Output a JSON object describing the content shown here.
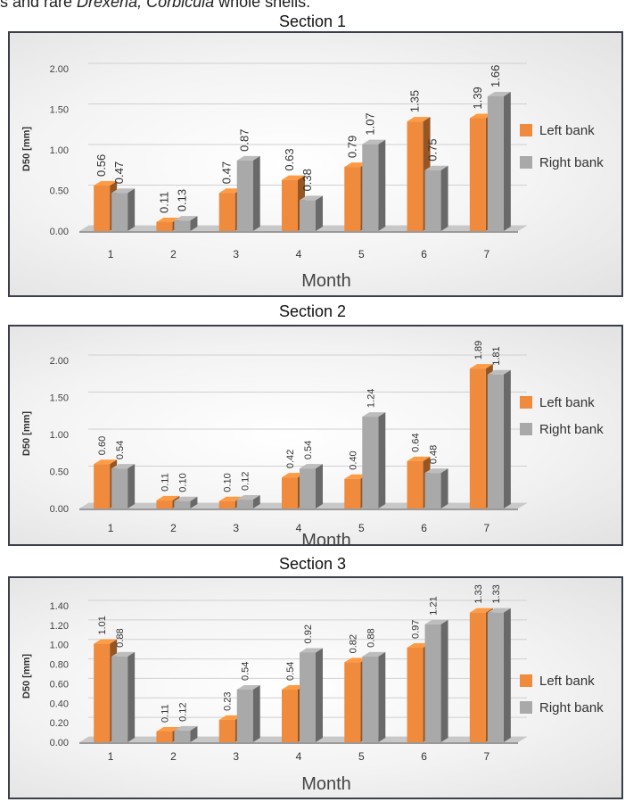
{
  "header": {
    "prefix": "s and rare ",
    "italic1": "Drexena, Corbicula",
    "suffix": " whole shells."
  },
  "legend_labels": [
    "Left bank",
    "Right bank"
  ],
  "colors": {
    "left": "#f08a3c",
    "right": "#a9a9a9"
  },
  "chart_data": [
    {
      "type": "bar",
      "title": "Section 1",
      "xlabel": "Month",
      "ylabel": "D50 [mm]",
      "categories": [
        "1",
        "2",
        "3",
        "4",
        "5",
        "6",
        "7"
      ],
      "ylim": [
        0,
        2.0
      ],
      "yticks": [
        "0.00",
        "0.50",
        "1.00",
        "1.50",
        "2.00"
      ],
      "ytick_values": [
        0,
        0.5,
        1.0,
        1.5,
        2.0
      ],
      "series": [
        {
          "name": "Left bank",
          "values": [
            0.56,
            0.11,
            0.47,
            0.63,
            0.79,
            1.35,
            1.39
          ],
          "labels": [
            "0.56",
            "0.11",
            "0.47",
            "0.63",
            "0.79",
            "1.35",
            "1.39"
          ]
        },
        {
          "name": "Right bank",
          "values": [
            0.47,
            0.13,
            0.87,
            0.38,
            1.07,
            0.75,
            1.66
          ],
          "labels": [
            "0.47",
            "0.13",
            "0.87",
            "0.38",
            "1.07",
            "0.75",
            "1.66"
          ]
        }
      ],
      "legend": "right",
      "grid": true
    },
    {
      "type": "bar",
      "title": "Section 2",
      "xlabel": "Month",
      "ylabel": "D50 [mm]",
      "categories": [
        "1",
        "2",
        "3",
        "4",
        "5",
        "6",
        "7"
      ],
      "ylim": [
        0,
        2.0
      ],
      "yticks": [
        "0.00",
        "0.50",
        "1.00",
        "1.50",
        "2.00"
      ],
      "ytick_values": [
        0,
        0.5,
        1.0,
        1.5,
        2.0
      ],
      "series": [
        {
          "name": "Left bank",
          "values": [
            0.6,
            0.11,
            0.1,
            0.42,
            0.4,
            0.64,
            1.89
          ],
          "labels": [
            "0.60",
            "0.11",
            "0.10",
            "0.42",
            "0.40",
            "0.64",
            "1.89"
          ]
        },
        {
          "name": "Right bank",
          "values": [
            0.54,
            0.1,
            0.12,
            0.54,
            1.24,
            0.48,
            1.81
          ],
          "labels": [
            "0.54",
            "0.10",
            "0.12",
            "0.54",
            "1.24",
            "0.48",
            "1.81"
          ]
        }
      ],
      "legend": "right",
      "grid": true
    },
    {
      "type": "bar",
      "title": "Section 3",
      "xlabel": "Month",
      "ylabel": "D50 [mm]",
      "categories": [
        "1",
        "2",
        "3",
        "4",
        "5",
        "6",
        "7"
      ],
      "ylim": [
        0,
        1.4
      ],
      "yticks": [
        "0.00",
        "0.20",
        "0.40",
        "0.60",
        "0.80",
        "1.00",
        "1.20",
        "1.40"
      ],
      "ytick_values": [
        0,
        0.2,
        0.4,
        0.6,
        0.8,
        1.0,
        1.2,
        1.4
      ],
      "series": [
        {
          "name": "Left bank",
          "values": [
            1.01,
            0.11,
            0.23,
            0.54,
            0.82,
            0.97,
            1.33
          ],
          "labels": [
            "1.01",
            "0.11",
            "0.23",
            "0.54",
            "0.82",
            "0.97",
            "1.33"
          ]
        },
        {
          "name": "Right bank",
          "values": [
            0.88,
            0.12,
            0.54,
            0.92,
            0.88,
            1.21,
            1.33
          ],
          "labels": [
            "0.88",
            "0.12",
            "0.54",
            "0.92",
            "0.88",
            "1.21",
            "1.33"
          ]
        }
      ],
      "legend": "right",
      "grid": true
    }
  ]
}
